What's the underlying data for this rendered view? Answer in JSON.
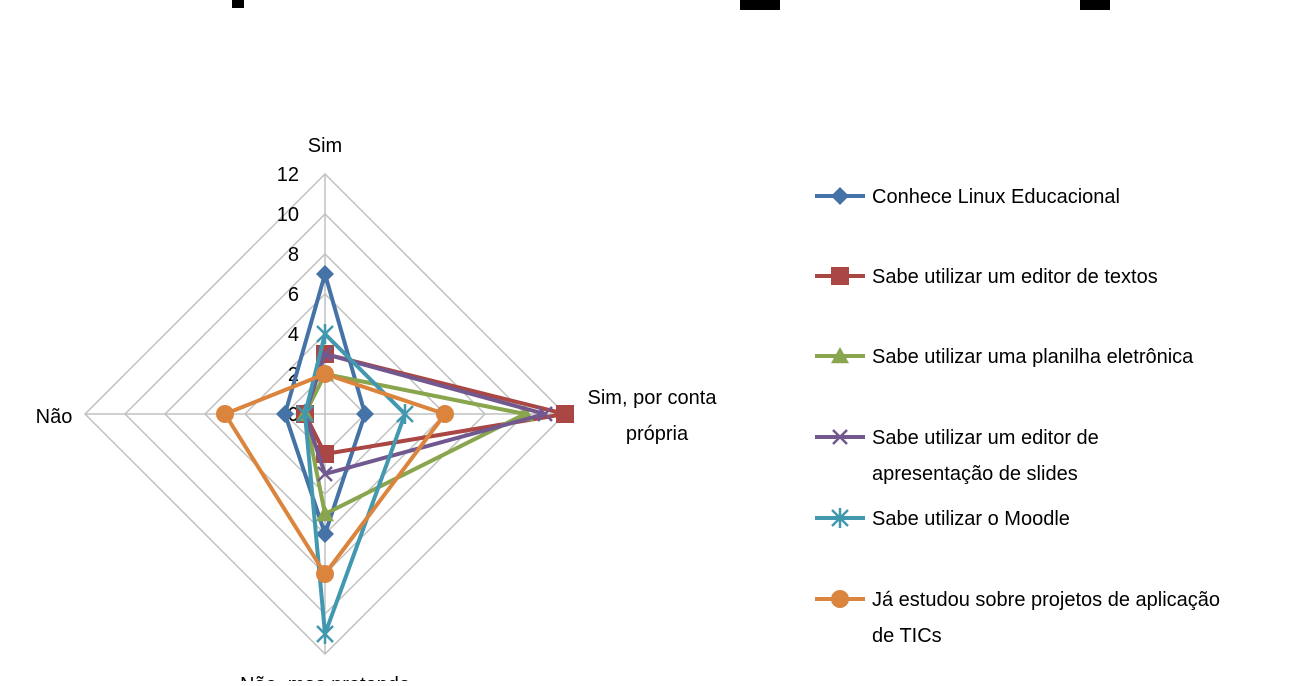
{
  "chart_data": {
    "type": "radar",
    "title": "",
    "categories": [
      "Sim",
      "Sim, por conta própria",
      "Não, mas pretendo",
      "Não"
    ],
    "category_label_lines": {
      "sim": [
        "Sim"
      ],
      "sim_conta": [
        "Sim, por conta",
        "própria"
      ],
      "nao_pretendo": [
        "Não, mas pretendo"
      ],
      "nao": [
        "Não"
      ]
    },
    "r_axis": {
      "min": 0,
      "max": 12,
      "step": 2,
      "ticks": [
        "0",
        "2",
        "4",
        "6",
        "8",
        "10",
        "12"
      ]
    },
    "grid": true,
    "legend_position": "right",
    "series": [
      {
        "name": "Conhece Linux Educacional",
        "label_lines": [
          "Conhece Linux Educacional"
        ],
        "values": [
          7,
          2,
          6,
          2
        ],
        "color": "#4572A7",
        "marker": "diamond"
      },
      {
        "name": "Sabe utilizar um editor de textos",
        "label_lines": [
          "Sabe utilizar um editor de textos"
        ],
        "values": [
          3,
          12,
          2,
          1
        ],
        "color": "#AA4643",
        "marker": "square"
      },
      {
        "name": "Sabe utilizar uma planilha eletrônica",
        "label_lines": [
          "Sabe utilizar uma planilha eletrônica"
        ],
        "values": [
          2,
          10,
          5,
          1
        ],
        "color": "#89A54E",
        "marker": "triangle"
      },
      {
        "name": "Sabe utilizar um editor de apresentação de slides",
        "label_lines": [
          "Sabe utilizar um editor de",
          "apresentação de slides"
        ],
        "values": [
          3,
          11,
          3,
          1
        ],
        "color": "#71588F",
        "marker": "x"
      },
      {
        "name": "Sabe utilizar o Moodle",
        "label_lines": [
          "Sabe utilizar o Moodle"
        ],
        "values": [
          4,
          4,
          11,
          1
        ],
        "color": "#4198AF",
        "marker": "star"
      },
      {
        "name": "Já estudou sobre projetos de aplicação de TICs",
        "label_lines": [
          "Já estudou sobre projetos de aplicação",
          "de TICs"
        ],
        "values": [
          2,
          6,
          8,
          5
        ],
        "color": "#DB843D",
        "marker": "circle"
      }
    ]
  }
}
